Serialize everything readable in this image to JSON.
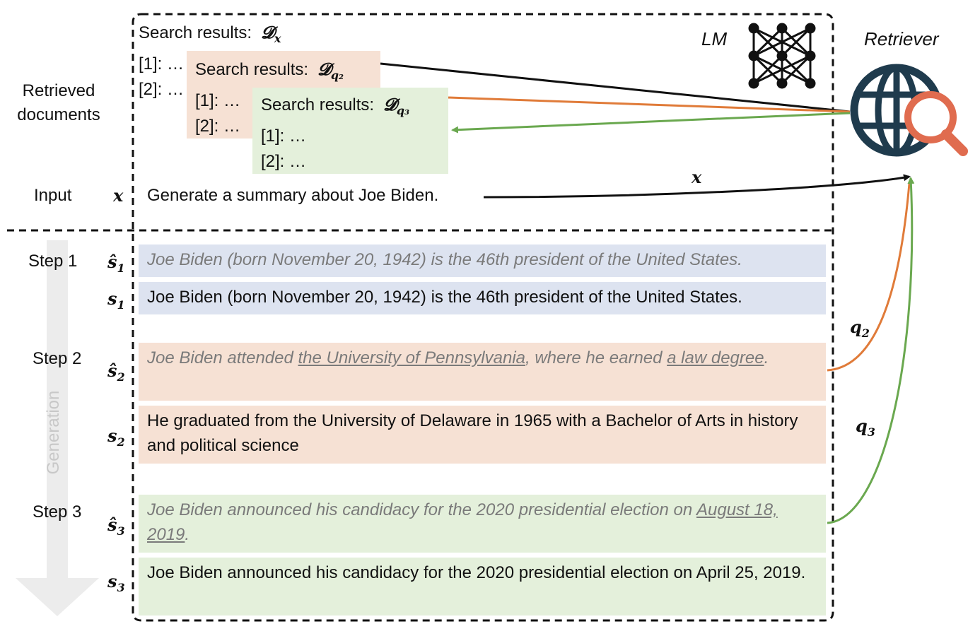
{
  "left_labels": {
    "retrieved": "Retrieved documents",
    "input": "Input",
    "step1": "Step 1",
    "step2": "Step 2",
    "step3": "Step 3",
    "generation": "Generation"
  },
  "symbols": {
    "x": "x",
    "s1hat": "ŝ",
    "s1": "s",
    "s2hat": "ŝ",
    "s2": "s",
    "s3hat": "ŝ",
    "s3": "s",
    "sub1": "1",
    "sub2": "2",
    "sub3": "3"
  },
  "lm_label": "LM",
  "retriever_label": "Retriever",
  "search_boxes": {
    "dx": {
      "title": "Search results:",
      "sym": "𝓓",
      "sub": "x",
      "r1": "[1]: …",
      "r2": "[2]: …"
    },
    "dq2": {
      "title": "Search results:",
      "sym": "𝓓",
      "sub": "q₂",
      "r1": "[1]: …",
      "r2": "[2]: …"
    },
    "dq3": {
      "title": "Search results:",
      "sym": "𝓓",
      "sub": "q₃",
      "r1": "[1]: …",
      "r2": "[2]: …"
    }
  },
  "input_text": "Generate a summary about Joe Biden.",
  "arrow_labels": {
    "x": "x",
    "q2": "q",
    "q2sub": "2",
    "q3": "q",
    "q3sub": "3"
  },
  "sentences": {
    "s1hat": "Joe Biden (born November 20, 1942) is the 46th president of the United States.",
    "s1": "Joe Biden (born November 20, 1942) is the 46th president of the United States.",
    "s2hat_a": "Joe Biden attended ",
    "s2hat_b": "the University of Pennsylvania",
    "s2hat_c": ", where he earned ",
    "s2hat_d": "a law degree",
    "s2hat_e": ".",
    "s2": "He graduated from the University of Delaware in 1965 with a Bachelor of Arts in history and political science",
    "s3hat_a": "Joe Biden announced his candidacy for the 2020 presidential election on ",
    "s3hat_b": "August 18, 2019",
    "s3hat_c": ".",
    "s3": "Joe Biden announced his candidacy for the 2020 presidential election on April 25, 2019."
  },
  "colors": {
    "orange": "#e07b39",
    "green": "#6aa84f",
    "blue_bg": "#dde3f0",
    "peach_bg": "#f6e1d4",
    "green_bg": "#e4f0db",
    "globe": "#1f3b4d",
    "magnifier": "#e06c4f"
  }
}
